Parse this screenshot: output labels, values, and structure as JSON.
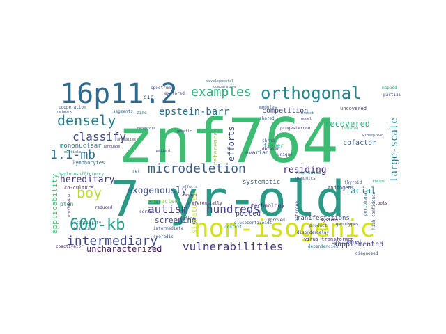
{
  "words": [
    {
      "text": "znf764",
      "color": "#3fbc73"
    },
    {
      "text": "7-yr-old",
      "color": "#2a9a87"
    },
    {
      "text": "16p11.2",
      "color": "#2f6b8e"
    },
    {
      "text": "non-isogenic",
      "color": "#d5e21a"
    },
    {
      "text": "orthogonal",
      "color": "#25858e"
    },
    {
      "text": "600-kb",
      "color": "#1f9e89"
    },
    {
      "text": "microdeletion",
      "color": "#365c8d"
    },
    {
      "text": "intermediary",
      "color": "#3e4989"
    },
    {
      "text": "examples",
      "color": "#2db27d"
    },
    {
      "text": "densely",
      "color": "#287d8e"
    },
    {
      "text": "boy",
      "color": "#b8de29"
    },
    {
      "text": "1.1-mb",
      "color": "#2c728e"
    },
    {
      "text": "classify",
      "color": "#3f4889"
    },
    {
      "text": "vulnerabilities",
      "color": "#46337e"
    },
    {
      "text": "epstein-barr",
      "color": "#2e6e8e"
    },
    {
      "text": "autism",
      "color": "#443a83"
    },
    {
      "text": "hundreds",
      "color": "#433e85"
    },
    {
      "text": "large-scale",
      "color": "#2a788e"
    },
    {
      "text": "hereditary",
      "color": "#453781"
    },
    {
      "text": "uncharacterized",
      "color": "#48186a"
    },
    {
      "text": "recovered",
      "color": "#2ab07f"
    },
    {
      "text": "residing",
      "color": "#482878"
    },
    {
      "text": "exogenously",
      "color": "#3b528b"
    },
    {
      "text": "screening",
      "color": "#414487"
    },
    {
      "text": "facial",
      "color": "#23898e"
    },
    {
      "text": "efforts",
      "color": "#3d4e8a"
    },
    {
      "text": "applicability",
      "color": "#44bf70"
    },
    {
      "text": "supplemented",
      "color": "#443983"
    },
    {
      "text": "competition",
      "color": "#404688"
    },
    {
      "text": "cofactor",
      "color": "#35608d"
    },
    {
      "text": "signatures",
      "color": "#c2df23"
    },
    {
      "text": "pooled",
      "color": "#3f4788"
    },
    {
      "text": "systematic",
      "color": "#365d8d"
    },
    {
      "text": "manifestations",
      "color": "#39568c"
    },
    {
      "text": "connected",
      "color": "#7ad151"
    },
    {
      "text": "reference",
      "color": "#a0da39"
    },
    {
      "text": "mononuclear",
      "color": "#2a778e"
    },
    {
      "text": "technology",
      "color": "#482475"
    },
    {
      "text": "ovarian",
      "color": "#3b528b"
    },
    {
      "text": "finger",
      "color": "#22a785"
    },
    {
      "text": "lymphocytes",
      "color": "#31688e"
    },
    {
      "text": "spectrum",
      "color": "#3e4a89"
    },
    {
      "text": "explored",
      "color": "#414487"
    },
    {
      "text": "die",
      "color": "#3d4d8a"
    },
    {
      "text": "pten",
      "color": "#21908d"
    },
    {
      "text": "co-culture",
      "color": "#482374"
    },
    {
      "text": "rrna-based",
      "color": "#27808e"
    },
    {
      "text": "genomics",
      "color": "#3b518b"
    },
    {
      "text": "deleted",
      "color": "#46307e"
    },
    {
      "text": "shrna",
      "color": "#3f4788"
    },
    {
      "text": "shared",
      "color": "#38598c"
    },
    {
      "text": "modules",
      "color": "#355e8d"
    },
    {
      "text": "uncovered",
      "color": "#433d84"
    },
    {
      "text": "androgens",
      "color": "#3e4c8a"
    },
    {
      "text": "thyroid",
      "color": "#365c8d"
    },
    {
      "text": "discovered",
      "color": "#3c4f8a"
    },
    {
      "text": "virus-transformed",
      "color": "#482475"
    },
    {
      "text": "dependencies",
      "color": "#2c738e"
    },
    {
      "text": "diagnosed",
      "color": "#3b528b"
    },
    {
      "text": "product",
      "color": "#3a548c"
    },
    {
      "text": "delay",
      "color": "#33638d"
    },
    {
      "text": "disorder",
      "color": "#3e4989"
    },
    {
      "text": "improved",
      "color": "#433e85"
    },
    {
      "text": "glucocorticoids",
      "color": "#34618d"
    },
    {
      "text": "context",
      "color": "#1f9a8a"
    },
    {
      "text": "intermediate",
      "color": "#3b528b"
    },
    {
      "text": "sporadic",
      "color": "#38588c"
    },
    {
      "text": "series",
      "color": "#453781"
    },
    {
      "text": "reduced",
      "color": "#472f7d"
    },
    {
      "text": "coactivator",
      "color": "#481f70"
    },
    {
      "text": "genotypes",
      "color": "#3e4989"
    },
    {
      "text": "systems",
      "color": "#471063"
    },
    {
      "text": "haploinsufficiency",
      "color": "#27ad81"
    },
    {
      "text": "cooperation",
      "color": "#38588c"
    },
    {
      "text": "segments",
      "color": "#306a8e"
    },
    {
      "text": "zinc",
      "color": "#26828e"
    },
    {
      "text": "progesterone",
      "color": "#433d84"
    },
    {
      "text": "mapped",
      "color": "#26ad81"
    },
    {
      "text": "partial",
      "color": "#3f4889"
    },
    {
      "text": "developmental",
      "color": "#2c728e"
    },
    {
      "text": "comparative",
      "color": "#3b528b"
    },
    {
      "text": "define",
      "color": "#31678e"
    },
    {
      "text": "set",
      "color": "#2c728e"
    },
    {
      "text": "effects",
      "color": "#3b528b"
    },
    {
      "text": "preferentially",
      "color": "#482878"
    },
    {
      "text": "essentiality",
      "color": "#2f6c8e"
    },
    {
      "text": "unique",
      "color": "#414487"
    },
    {
      "text": "estrogen",
      "color": "#3c4f8a"
    },
    {
      "text": "high-confidence",
      "color": "#3a538b"
    },
    {
      "text": "peripheral",
      "color": "#2d708e"
    },
    {
      "text": "tools",
      "color": "#471365"
    },
    {
      "text": "network",
      "color": "#3e4a89"
    },
    {
      "text": "language",
      "color": "#482677"
    },
    {
      "text": "patient",
      "color": "#453882"
    },
    {
      "text": "breast",
      "color": "#2c718e"
    },
    {
      "text": "model",
      "color": "#46337e"
    },
    {
      "text": "receptors",
      "color": "#3f4788"
    },
    {
      "text": "cancers",
      "color": "#48186a"
    },
    {
      "text": "isolated",
      "color": "#35b779"
    },
    {
      "text": "derivation",
      "color": "#3b528b"
    },
    {
      "text": "overlapping",
      "color": "#482071"
    },
    {
      "text": "anomalies",
      "color": "#3e4989"
    },
    {
      "text": "multiple",
      "color": "#26828e"
    },
    {
      "text": "genetic",
      "color": "#453781"
    },
    {
      "text": "fields",
      "color": "#22a884"
    },
    {
      "text": "widespread",
      "color": "#3b518b"
    }
  ]
}
